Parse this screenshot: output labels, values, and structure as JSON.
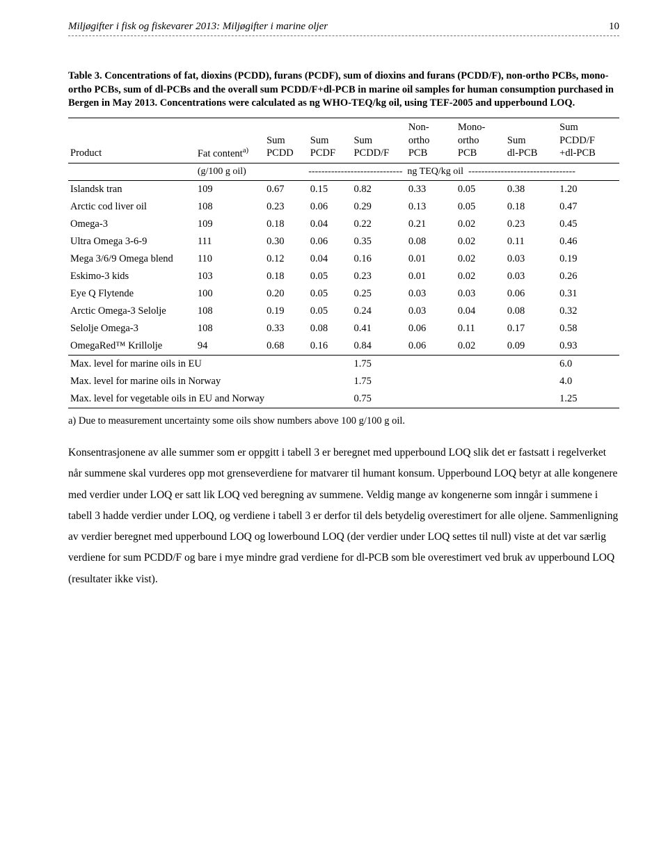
{
  "header": {
    "title": "Miljøgifter i fisk og fiskevarer 2013: Miljøgifter i marine oljer",
    "page": "10"
  },
  "caption": {
    "lead": "Table 3. Concentrations of fat,  dioxins (PCDD), furans (PCDF), sum of dioxins and furans (PCDD/F), non-ortho PCBs, mono-ortho PCBs, sum of dl-PCBs and the overall sum PCDD/F+dl-PCB in marine oil samples for human consumption purchased in Bergen in May 2013. Concentrations were calculated as ng WHO-TEQ/kg oil, using TEF-2005 and upperbound LOQ."
  },
  "table": {
    "headers": {
      "product": "Product",
      "fat": "Fat contentª)",
      "pcdd": "Sum PCDD",
      "pcdf": "Sum PCDF",
      "pcddf": "Sum PCDD/F",
      "nonortho": "Non-ortho PCB",
      "monoortho": "Mono-ortho PCB",
      "dlpcb": "Sum dl-PCB",
      "total": "Sum PCDD/F +dl-PCB"
    },
    "unit_left": "(g/100 g oil)",
    "unit_mid_dash": "-----------------------------",
    "unit_label": "ng TEQ/kg oil",
    "unit_right_dash": "---------------------------------",
    "rows": [
      {
        "p": "Islandsk tran",
        "fat": "109",
        "v": [
          "0.67",
          "0.15",
          "0.82",
          "0.33",
          "0.05",
          "0.38",
          "1.20"
        ]
      },
      {
        "p": "Arctic cod liver oil",
        "fat": "108",
        "v": [
          "0.23",
          "0.06",
          "0.29",
          "0.13",
          "0.05",
          "0.18",
          "0.47"
        ]
      },
      {
        "p": "Omega-3",
        "fat": "109",
        "v": [
          "0.18",
          "0.04",
          "0.22",
          "0.21",
          "0.02",
          "0.23",
          "0.45"
        ]
      },
      {
        "p": "Ultra Omega 3-6-9",
        "fat": "111",
        "v": [
          "0.30",
          "0.06",
          "0.35",
          "0.08",
          "0.02",
          "0.11",
          "0.46"
        ]
      },
      {
        "p": "Mega 3/6/9 Omega blend",
        "fat": "110",
        "v": [
          "0.12",
          "0.04",
          "0.16",
          "0.01",
          "0.02",
          "0.03",
          "0.19"
        ]
      },
      {
        "p": "Eskimo-3 kids",
        "fat": "103",
        "v": [
          "0.18",
          "0.05",
          "0.23",
          "0.01",
          "0.02",
          "0.03",
          "0.26"
        ]
      },
      {
        "p": "Eye Q Flytende",
        "fat": "100",
        "v": [
          "0.20",
          "0.05",
          "0.25",
          "0.03",
          "0.03",
          "0.06",
          "0.31"
        ]
      },
      {
        "p": "Arctic Omega-3 Selolje",
        "fat": "108",
        "v": [
          "0.19",
          "0.05",
          "0.24",
          "0.03",
          "0.04",
          "0.08",
          "0.32"
        ]
      },
      {
        "p": "Selolje Omega-3",
        "fat": "108",
        "v": [
          "0.33",
          "0.08",
          "0.41",
          "0.06",
          "0.11",
          "0.17",
          "0.58"
        ]
      },
      {
        "p": "OmegaRed™ Krillolje",
        "fat": "94",
        "v": [
          "0.68",
          "0.16",
          "0.84",
          "0.06",
          "0.02",
          "0.09",
          "0.93"
        ]
      }
    ],
    "limits": [
      {
        "label": "Max. level for marine oils in EU",
        "pcddf": "1.75",
        "total": "6.0"
      },
      {
        "label": "Max. level for marine oils in Norway",
        "pcddf": "1.75",
        "total": "4.0"
      },
      {
        "label": "Max. level for vegetable oils in EU and Norway",
        "pcddf": "0.75",
        "total": "1.25"
      }
    ]
  },
  "footnote": "a) Due to measurement uncertainty some oils show numbers above 100 g/100 g oil.",
  "body": "Konsentrasjonene av alle summer som er oppgitt i tabell 3 er beregnet med upperbound LOQ slik det er fastsatt i regelverket når summene skal vurderes opp mot grenseverdiene for matvarer til humant konsum. Upperbound LOQ betyr at alle kongenere med verdier under LOQ er satt lik LOQ ved beregning av summene. Veldig mange av kongenerne som inngår i summene i tabell 3 hadde verdier under LOQ, og verdiene i tabell 3 er derfor til dels betydelig overestimert for alle oljene. Sammenligning av verdier beregnet med upperbound LOQ og lowerbound LOQ (der verdier under LOQ settes til null) viste at det var særlig verdiene for sum PCDD/F og bare i mye mindre grad verdiene for dl-PCB som ble overestimert ved bruk av upperbound LOQ (resultater ikke vist)."
}
